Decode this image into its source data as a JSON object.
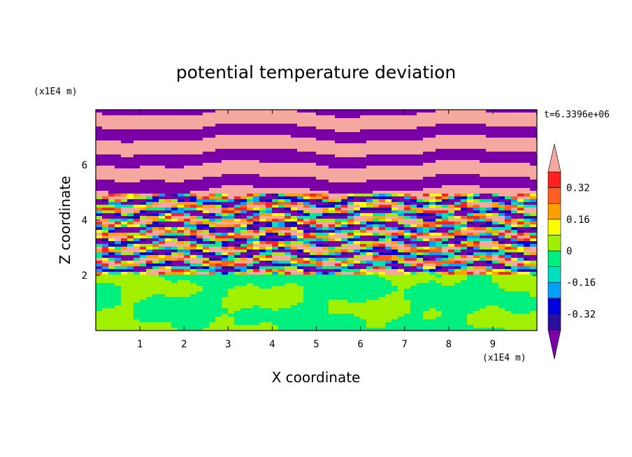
{
  "chart_data": {
    "type": "heatmap",
    "title": "potential temperature deviation",
    "xlabel": "X coordinate",
    "ylabel": "Z coordinate",
    "x_unit": "(x1E4 m)",
    "y_unit": "(x1E4 m)",
    "time_label": "t=6.3396e+06",
    "xlim": [
      0,
      10
    ],
    "ylim": [
      0,
      8
    ],
    "x_ticks": [
      "1",
      "2",
      "3",
      "4",
      "5",
      "6",
      "7",
      "8",
      "9"
    ],
    "y_ticks": [
      "2",
      "4",
      "6"
    ],
    "x_tick_values": [
      1,
      2,
      3,
      4,
      5,
      6,
      7,
      8,
      9
    ],
    "y_tick_values": [
      2,
      4,
      6
    ],
    "colorbar": {
      "levels": [
        -0.4,
        -0.32,
        -0.24,
        -0.16,
        -0.08,
        0,
        0.08,
        0.16,
        0.24,
        0.32,
        0.4
      ],
      "labels": [
        "0.32",
        "0.16",
        "0",
        "-0.16",
        "-0.32"
      ],
      "label_values": [
        0.32,
        0.16,
        0,
        -0.16,
        -0.32
      ],
      "colors": [
        "#7a00a8",
        "#2b0fa0",
        "#0000e0",
        "#00a0ff",
        "#00e0c0",
        "#00f080",
        "#a0f000",
        "#ffff00",
        "#ffa000",
        "#ff6020",
        "#ff2020",
        "#f4a8a0"
      ],
      "extend": "both"
    },
    "field_summary": {
      "lower_layer": {
        "z_range": [
          0,
          2
        ],
        "value_range": [
          -0.08,
          0.08
        ],
        "pattern": "near-zero patches (green / light green)"
      },
      "middle_layer": {
        "z_range": [
          2,
          5
        ],
        "value_range": [
          -0.4,
          0.4
        ],
        "pattern": "small-scale mixed cells, all colors"
      },
      "upper_layer": {
        "z_range": [
          5,
          8
        ],
        "value_range": [
          -0.4,
          0.4
        ],
        "pattern": "alternating horizontal bands, mostly pink (>0.4) and purple (<-0.4)"
      }
    }
  }
}
